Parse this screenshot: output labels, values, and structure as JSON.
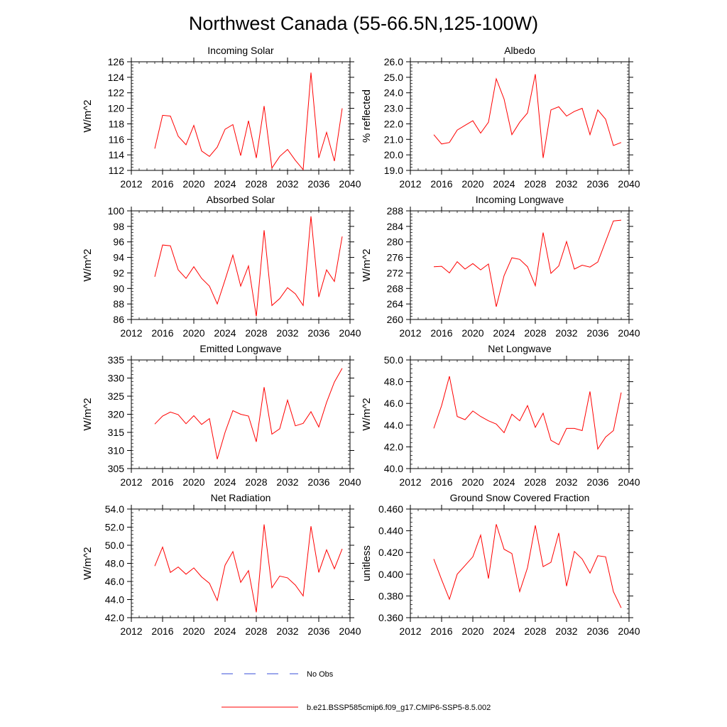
{
  "figure": {
    "title": "Northwest Canada (55-66.5N,125-100W)"
  },
  "legend": {
    "items": [
      {
        "label": "No Obs",
        "color": "#3a4fd8",
        "dash": true
      },
      {
        "label": "b.e21.BSSP585cmip6.f09_g17.CMIP6-SSP5-8.5.002",
        "color": "#ff0000",
        "dash": false
      }
    ]
  },
  "chart_data": [
    {
      "type": "line",
      "title": "Incoming Solar",
      "ylabel": "W/m^2",
      "xlim": [
        2012,
        2040
      ],
      "ylim": [
        112,
        126
      ],
      "xticks": [
        "2012",
        "2016",
        "2020",
        "2024",
        "2028",
        "2032",
        "2036",
        "2040"
      ],
      "yticks": [
        "112",
        "114",
        "116",
        "118",
        "120",
        "122",
        "124",
        "126"
      ],
      "series": [
        {
          "color": "#ff0000",
          "x": [
            2015,
            2016,
            2017,
            2018,
            2019,
            2020,
            2021,
            2022,
            2023,
            2024,
            2025,
            2026,
            2027,
            2028,
            2029,
            2030,
            2031,
            2032,
            2033,
            2034,
            2035,
            2036,
            2037,
            2038,
            2039
          ],
          "values": [
            114.8,
            119.1,
            119.0,
            116.4,
            115.3,
            117.8,
            114.5,
            113.8,
            115.0,
            117.3,
            117.9,
            113.9,
            118.4,
            113.6,
            120.3,
            112.3,
            113.8,
            114.7,
            113.3,
            112.1,
            124.6,
            113.6,
            116.9,
            113.2,
            120.0
          ]
        }
      ]
    },
    {
      "type": "line",
      "title": "Albedo",
      "ylabel": "% reflected",
      "xlim": [
        2012,
        2040
      ],
      "ylim": [
        19.0,
        26.0
      ],
      "xticks": [
        "2012",
        "2016",
        "2020",
        "2024",
        "2028",
        "2032",
        "2036",
        "2040"
      ],
      "yticks": [
        "19.0",
        "20.0",
        "21.0",
        "22.0",
        "23.0",
        "24.0",
        "25.0",
        "26.0"
      ],
      "series": [
        {
          "color": "#ff0000",
          "x": [
            2015,
            2016,
            2017,
            2018,
            2019,
            2020,
            2021,
            2022,
            2023,
            2024,
            2025,
            2026,
            2027,
            2028,
            2029,
            2030,
            2031,
            2032,
            2033,
            2034,
            2035,
            2036,
            2037,
            2038,
            2039
          ],
          "values": [
            21.3,
            20.7,
            20.8,
            21.6,
            21.9,
            22.2,
            21.4,
            22.1,
            24.9,
            23.6,
            21.3,
            22.1,
            22.7,
            25.2,
            19.8,
            22.9,
            23.1,
            22.5,
            22.8,
            23.0,
            21.3,
            22.9,
            22.3,
            20.6,
            20.8
          ]
        }
      ]
    },
    {
      "type": "line",
      "title": "Absorbed Solar",
      "ylabel": "W/m^2",
      "xlim": [
        2012,
        2040
      ],
      "ylim": [
        86,
        100
      ],
      "xticks": [
        "2012",
        "2016",
        "2020",
        "2024",
        "2028",
        "2032",
        "2036",
        "2040"
      ],
      "yticks": [
        "86",
        "88",
        "90",
        "92",
        "94",
        "96",
        "98",
        "100"
      ],
      "series": [
        {
          "color": "#ff0000",
          "x": [
            2015,
            2016,
            2017,
            2018,
            2019,
            2020,
            2021,
            2022,
            2023,
            2024,
            2025,
            2026,
            2027,
            2028,
            2029,
            2030,
            2031,
            2032,
            2033,
            2034,
            2035,
            2036,
            2037,
            2038,
            2039
          ],
          "values": [
            91.5,
            95.6,
            95.5,
            92.4,
            91.3,
            92.8,
            91.3,
            90.3,
            88.0,
            91.1,
            94.3,
            90.3,
            92.9,
            86.4,
            97.5,
            87.8,
            88.7,
            90.1,
            89.3,
            87.8,
            99.3,
            88.9,
            92.4,
            90.9,
            96.7
          ]
        }
      ]
    },
    {
      "type": "line",
      "title": "Incoming Longwave",
      "ylabel": "W/m^2",
      "xlim": [
        2012,
        2040
      ],
      "ylim": [
        260,
        288
      ],
      "xticks": [
        "2012",
        "2016",
        "2020",
        "2024",
        "2028",
        "2032",
        "2036",
        "2040"
      ],
      "yticks": [
        "260",
        "264",
        "268",
        "272",
        "276",
        "280",
        "284",
        "288"
      ],
      "series": [
        {
          "color": "#ff0000",
          "x": [
            2015,
            2016,
            2017,
            2018,
            2019,
            2020,
            2021,
            2022,
            2023,
            2024,
            2025,
            2026,
            2027,
            2028,
            2029,
            2030,
            2031,
            2032,
            2033,
            2034,
            2035,
            2036,
            2037,
            2038,
            2039
          ],
          "values": [
            273.6,
            273.7,
            272.0,
            274.9,
            273.0,
            274.4,
            272.8,
            274.3,
            263.3,
            271.3,
            275.9,
            275.5,
            273.6,
            268.7,
            282.4,
            271.9,
            273.8,
            280.1,
            273.0,
            274.0,
            273.5,
            274.8,
            280.1,
            285.4,
            285.6
          ]
        }
      ]
    },
    {
      "type": "line",
      "title": "Emitted Longwave",
      "ylabel": "W/m^2",
      "xlim": [
        2012,
        2040
      ],
      "ylim": [
        305,
        335
      ],
      "xticks": [
        "2012",
        "2016",
        "2020",
        "2024",
        "2028",
        "2032",
        "2036",
        "2040"
      ],
      "yticks": [
        "305",
        "310",
        "315",
        "320",
        "325",
        "330",
        "335"
      ],
      "series": [
        {
          "color": "#ff0000",
          "x": [
            2015,
            2016,
            2017,
            2018,
            2019,
            2020,
            2021,
            2022,
            2023,
            2024,
            2025,
            2026,
            2027,
            2028,
            2029,
            2030,
            2031,
            2032,
            2033,
            2034,
            2035,
            2036,
            2037,
            2038,
            2039
          ],
          "values": [
            317.3,
            319.5,
            320.6,
            319.9,
            317.4,
            319.6,
            317.2,
            318.8,
            307.6,
            315.0,
            321.0,
            320.0,
            319.5,
            312.4,
            327.5,
            314.5,
            316.0,
            323.9,
            316.8,
            317.5,
            320.7,
            316.5,
            323.3,
            328.9,
            332.7
          ]
        }
      ]
    },
    {
      "type": "line",
      "title": "Net Longwave",
      "ylabel": "W/m^2",
      "xlim": [
        2012,
        2040
      ],
      "ylim": [
        40.0,
        50.0
      ],
      "xticks": [
        "2012",
        "2016",
        "2020",
        "2024",
        "2028",
        "2032",
        "2036",
        "2040"
      ],
      "yticks": [
        "40.0",
        "42.0",
        "44.0",
        "46.0",
        "48.0",
        "50.0"
      ],
      "series": [
        {
          "color": "#ff0000",
          "x": [
            2015,
            2016,
            2017,
            2018,
            2019,
            2020,
            2021,
            2022,
            2023,
            2024,
            2025,
            2026,
            2027,
            2028,
            2029,
            2030,
            2031,
            2032,
            2033,
            2034,
            2035,
            2036,
            2037,
            2038,
            2039
          ],
          "values": [
            43.7,
            45.8,
            48.5,
            44.8,
            44.5,
            45.3,
            44.8,
            44.4,
            44.1,
            43.3,
            45.0,
            44.4,
            45.8,
            43.8,
            45.1,
            42.6,
            42.2,
            43.7,
            43.7,
            43.5,
            47.1,
            41.8,
            42.9,
            43.5,
            47.0
          ]
        }
      ]
    },
    {
      "type": "line",
      "title": "Net Radiation",
      "ylabel": "W/m^2",
      "xlim": [
        2012,
        2040
      ],
      "ylim": [
        42.0,
        54.0
      ],
      "xticks": [
        "2012",
        "2016",
        "2020",
        "2024",
        "2028",
        "2032",
        "2036",
        "2040"
      ],
      "yticks": [
        "42.0",
        "44.0",
        "46.0",
        "48.0",
        "50.0",
        "52.0",
        "54.0"
      ],
      "series": [
        {
          "color": "#ff0000",
          "x": [
            2015,
            2016,
            2017,
            2018,
            2019,
            2020,
            2021,
            2022,
            2023,
            2024,
            2025,
            2026,
            2027,
            2028,
            2029,
            2030,
            2031,
            2032,
            2033,
            2034,
            2035,
            2036,
            2037,
            2038,
            2039
          ],
          "values": [
            47.7,
            49.8,
            47.0,
            47.6,
            46.8,
            47.5,
            46.5,
            45.8,
            43.9,
            47.8,
            49.3,
            45.9,
            47.2,
            42.6,
            52.3,
            45.3,
            46.6,
            46.4,
            45.6,
            44.4,
            52.1,
            47.0,
            49.5,
            47.4,
            49.6
          ]
        }
      ]
    },
    {
      "type": "line",
      "title": "Ground Snow Covered Fraction",
      "ylabel": "unitless",
      "xlim": [
        2012,
        2040
      ],
      "ylim": [
        0.36,
        0.46
      ],
      "xticks": [
        "2012",
        "2016",
        "2020",
        "2024",
        "2028",
        "2032",
        "2036",
        "2040"
      ],
      "yticks": [
        "0.360",
        "0.380",
        "0.400",
        "0.420",
        "0.440",
        "0.460"
      ],
      "series": [
        {
          "color": "#ff0000",
          "x": [
            2015,
            2016,
            2017,
            2018,
            2019,
            2020,
            2021,
            2022,
            2023,
            2024,
            2025,
            2026,
            2027,
            2028,
            2029,
            2030,
            2031,
            2032,
            2033,
            2034,
            2035,
            2036,
            2037,
            2038,
            2039
          ],
          "values": [
            0.414,
            0.395,
            0.377,
            0.4,
            0.408,
            0.416,
            0.436,
            0.396,
            0.446,
            0.423,
            0.419,
            0.384,
            0.406,
            0.445,
            0.407,
            0.411,
            0.438,
            0.389,
            0.421,
            0.414,
            0.401,
            0.417,
            0.416,
            0.384,
            0.369
          ]
        }
      ]
    }
  ]
}
